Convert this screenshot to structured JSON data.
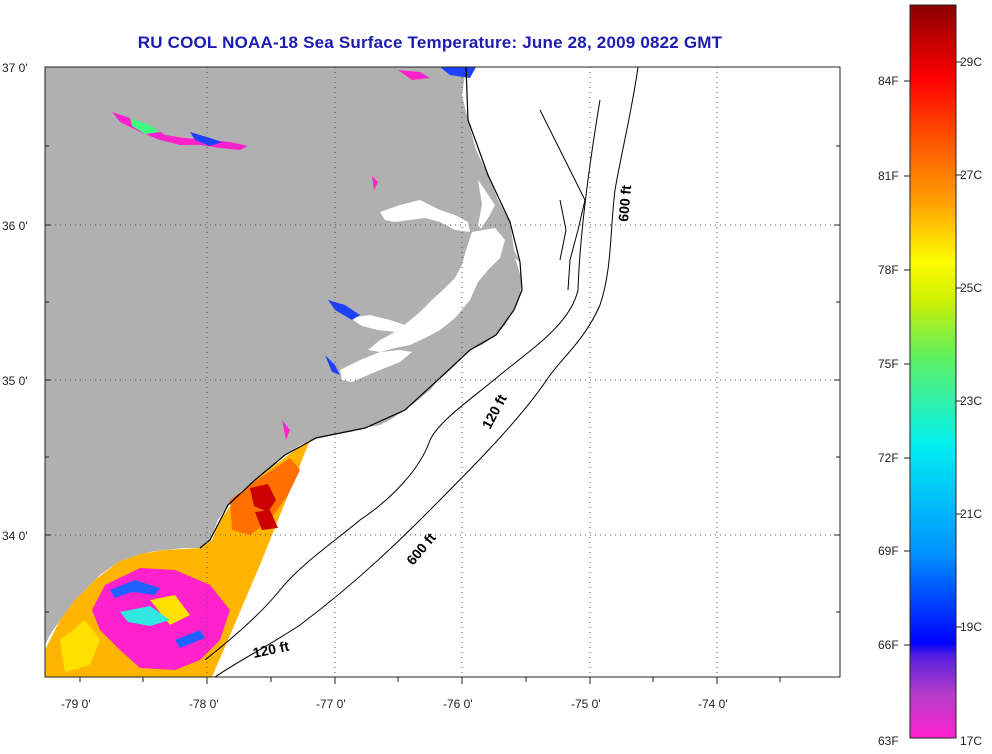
{
  "title": "RU COOL  NOAA-18  Sea Surface Temperature:  June 28, 2009 0822 GMT",
  "lat_labels": [
    "37 0'",
    "36 0'",
    "35 0'",
    "34 0'"
  ],
  "lon_labels": [
    "-79 0'",
    "-78 0'",
    "-77 0'",
    "-76 0'",
    "-75 0'",
    "-74 0'"
  ],
  "depth_labels": {
    "north_600": "600 ft",
    "mid_120": "120 ft",
    "south_600": "600 ft",
    "south_120": "120 ft"
  },
  "colorbar": {
    "fahrenheit": [
      "84F",
      "81F",
      "78F",
      "75F",
      "72F",
      "69F",
      "66F",
      "63F"
    ],
    "celsius": [
      "29C",
      "27C",
      "25C",
      "23C",
      "21C",
      "19C",
      "17C"
    ]
  },
  "colors": {
    "land": "#b0b0b0",
    "title": "#1c1cb0",
    "grid": "#555555"
  }
}
